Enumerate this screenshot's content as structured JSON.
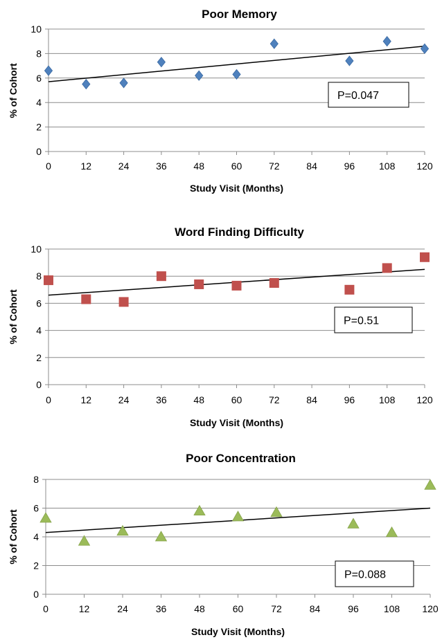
{
  "chart_data": [
    {
      "type": "scatter",
      "title": "Poor Memory",
      "xlabel": "Study Visit (Months)",
      "ylabel": "% of Cohort",
      "xticks": [
        0,
        12,
        24,
        36,
        48,
        60,
        72,
        84,
        96,
        108,
        120
      ],
      "yticks": [
        0,
        2,
        4,
        6,
        8,
        10
      ],
      "xlim": [
        0,
        120
      ],
      "ylim": [
        0,
        10
      ],
      "grid": true,
      "marker": "diamond",
      "color": "#4f81bd",
      "series": [
        {
          "x": [
            0,
            12,
            24,
            36,
            48,
            60,
            72,
            96,
            108,
            120
          ],
          "y": [
            6.6,
            5.5,
            5.6,
            7.3,
            6.2,
            6.3,
            8.8,
            7.4,
            9.0,
            8.4
          ]
        }
      ],
      "trendline": {
        "x": [
          0,
          120
        ],
        "y": [
          5.7,
          8.6
        ]
      },
      "annotation": "P=0.047"
    },
    {
      "type": "scatter",
      "title": "Word Finding Difficulty",
      "xlabel": "Study Visit (Months)",
      "ylabel": "% of Cohort",
      "xticks": [
        0,
        12,
        24,
        36,
        48,
        60,
        72,
        84,
        96,
        108,
        120
      ],
      "yticks": [
        0,
        2,
        4,
        6,
        8,
        10
      ],
      "xlim": [
        0,
        120
      ],
      "ylim": [
        0,
        10
      ],
      "grid": true,
      "marker": "square",
      "color": "#c0504d",
      "series": [
        {
          "x": [
            0,
            12,
            24,
            36,
            48,
            60,
            72,
            96,
            108,
            120
          ],
          "y": [
            7.7,
            6.3,
            6.1,
            8.0,
            7.4,
            7.3,
            7.5,
            7.0,
            8.6,
            9.4
          ]
        }
      ],
      "trendline": {
        "x": [
          0,
          120
        ],
        "y": [
          6.6,
          8.5
        ]
      },
      "annotation": "P=0.51"
    },
    {
      "type": "scatter",
      "title": "Poor Concentration",
      "xlabel": "Study Visit (Months)",
      "ylabel": "% of Cohort",
      "xticks": [
        0,
        12,
        24,
        36,
        48,
        60,
        72,
        84,
        96,
        108,
        120
      ],
      "yticks": [
        0,
        2,
        4,
        6,
        8
      ],
      "xlim": [
        0,
        120
      ],
      "ylim": [
        0,
        8
      ],
      "grid": true,
      "marker": "triangle",
      "color": "#9bbb59",
      "series": [
        {
          "x": [
            0,
            12,
            24,
            36,
            48,
            60,
            72,
            96,
            108,
            120
          ],
          "y": [
            5.3,
            3.7,
            4.4,
            4.0,
            5.8,
            5.4,
            5.7,
            4.9,
            4.3,
            7.6
          ]
        }
      ],
      "trendline": {
        "x": [
          0,
          120
        ],
        "y": [
          4.3,
          6.0
        ]
      },
      "annotation": "P=0.088"
    }
  ]
}
